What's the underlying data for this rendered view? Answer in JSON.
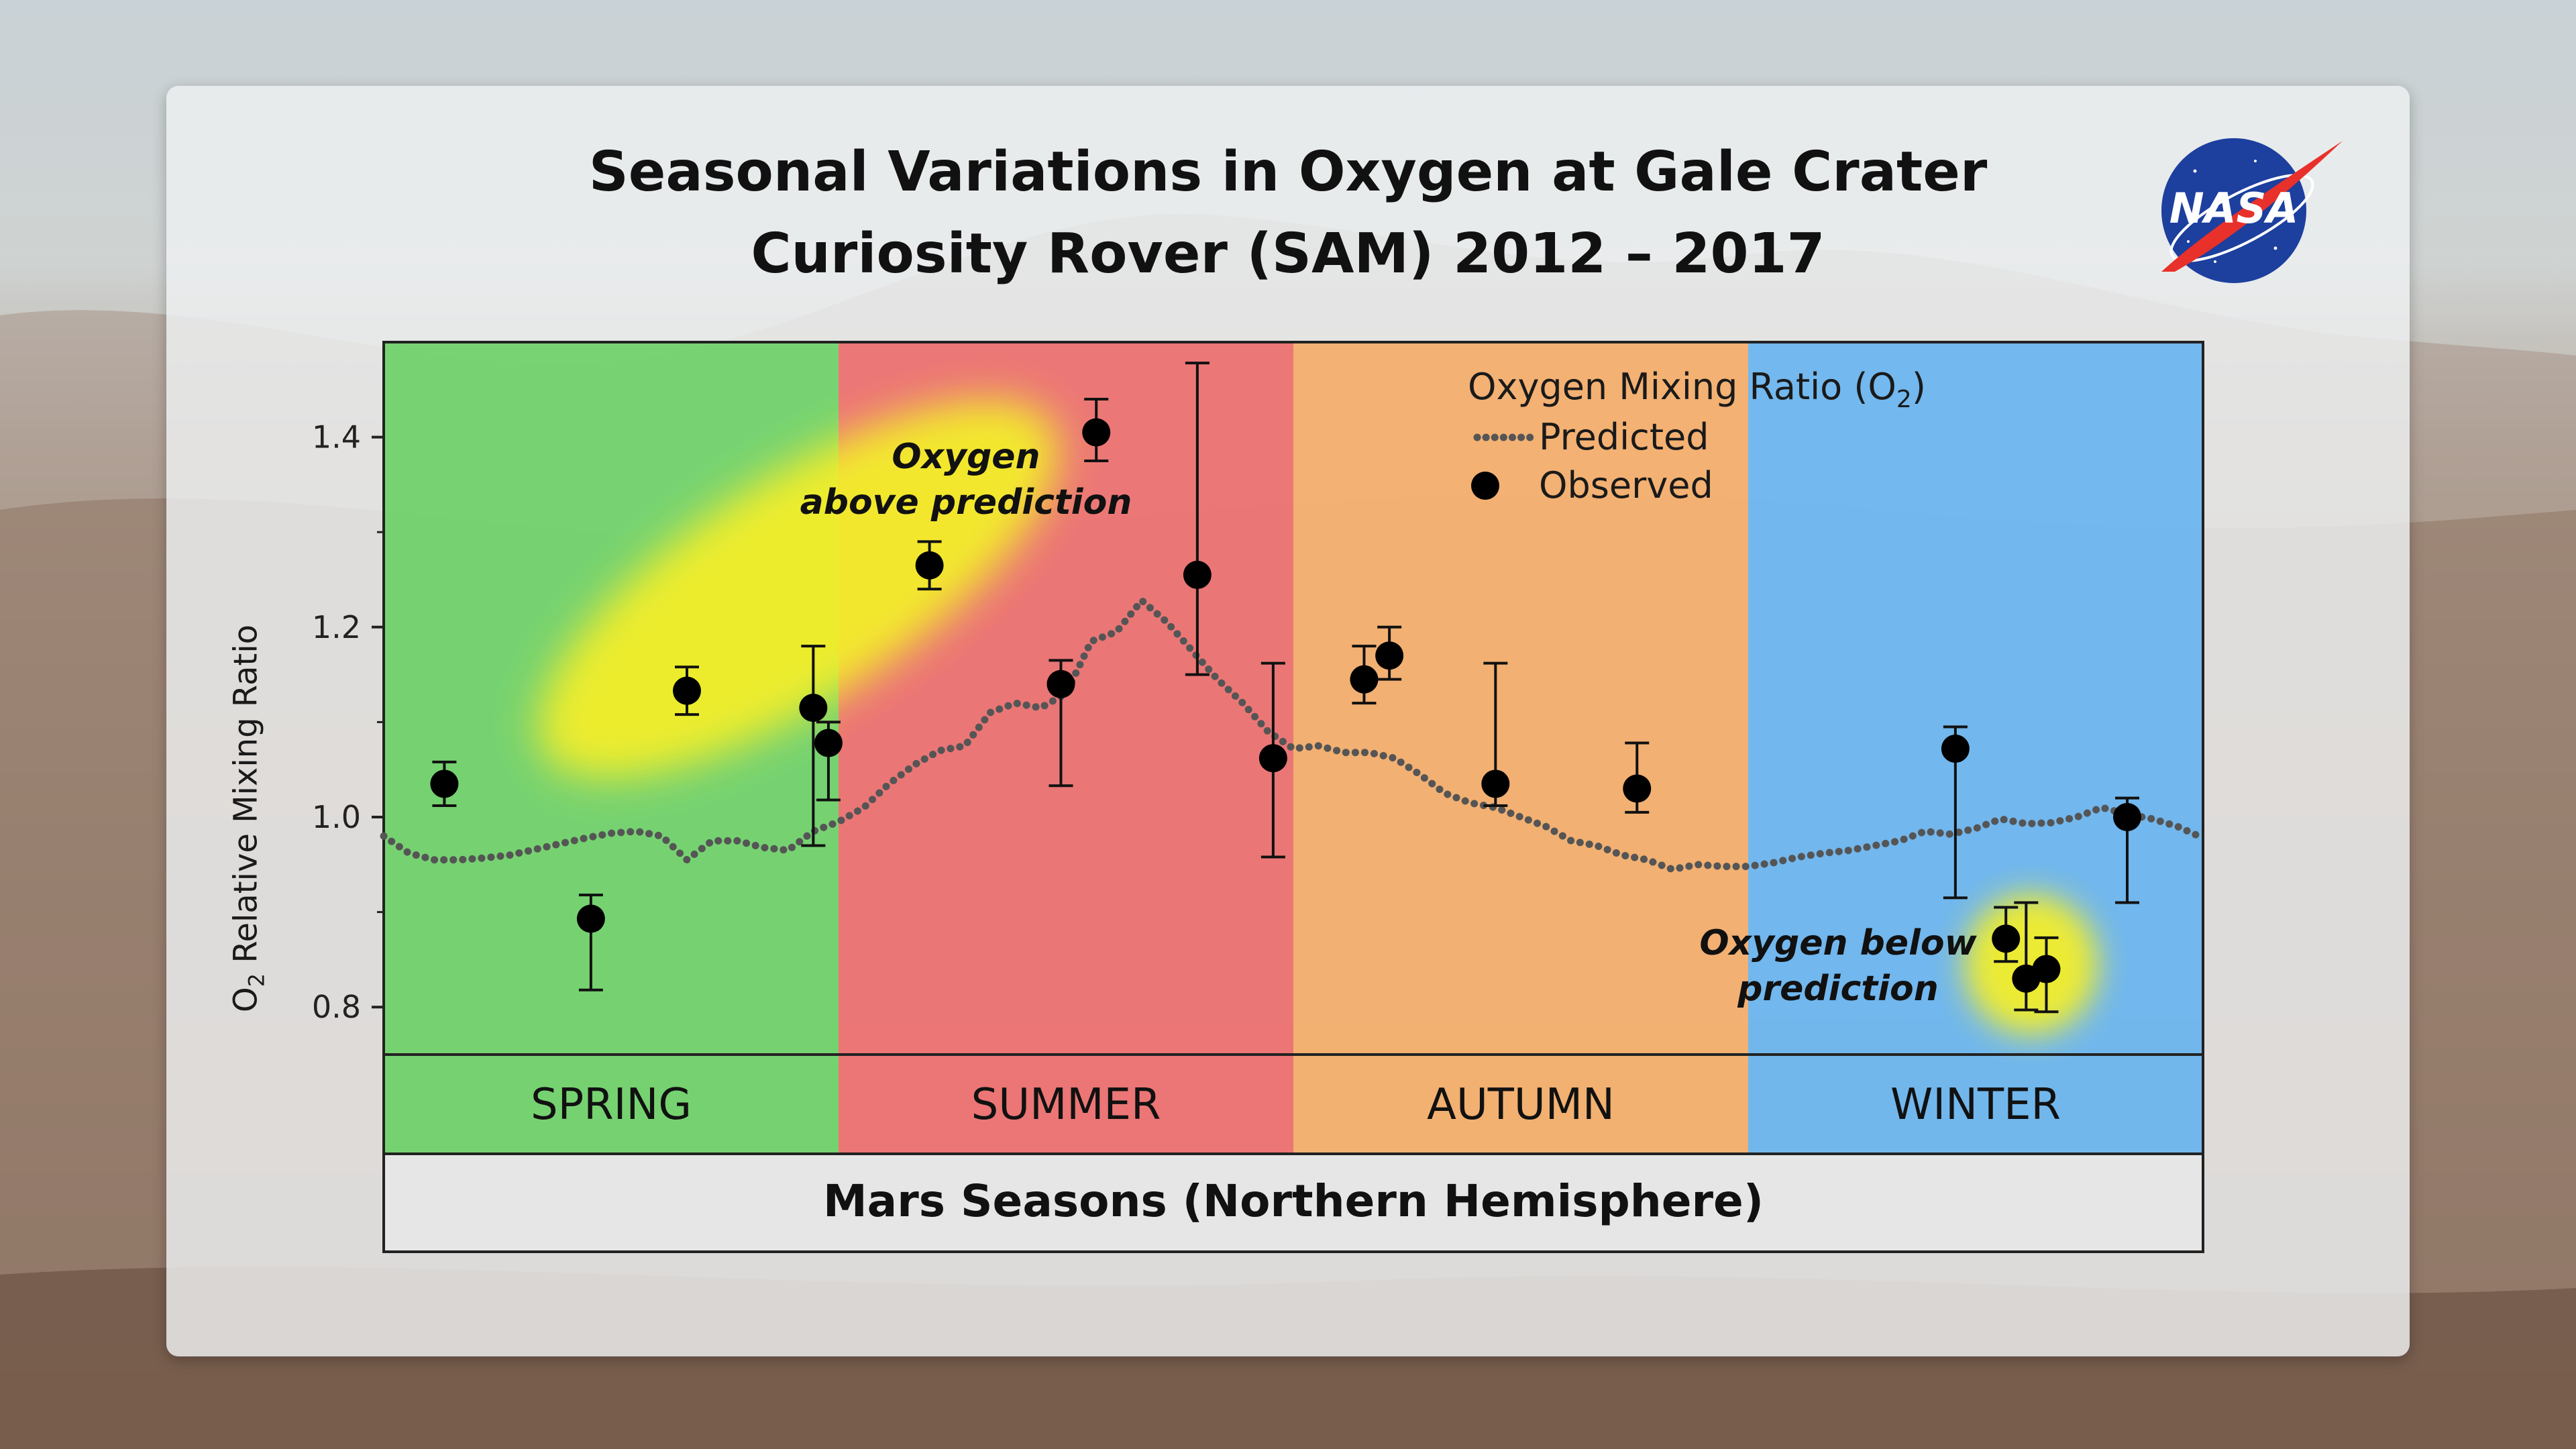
{
  "title_line1": "Seasonal Variations in Oxygen at Gale Crater",
  "title_line2": "Curiosity Rover (SAM) 2012 – 2017",
  "logo_text": "NASA",
  "colors": {
    "spring": "#5fcf59",
    "summer": "#ee5f5f",
    "autumn": "#f6a65a",
    "winter": "#5aaef0",
    "highlight": "#f3ee2a",
    "predicted": "#555555",
    "observed": "#000000"
  },
  "chart_data": {
    "type": "scatter",
    "ylabel_main": "O",
    "ylabel_sub": "2",
    "ylabel_rest": " Relative Mixing Ratio",
    "xlabel": "Mars Seasons (Northern Hemisphere)",
    "ylim": [
      0.75,
      1.5
    ],
    "yticks": [
      "0.8",
      "1.0",
      "1.2",
      "1.4"
    ],
    "xlim": [
      0,
      360
    ],
    "seasons": [
      "SPRING",
      "SUMMER",
      "AUTUMN",
      "WINTER"
    ],
    "legend": {
      "title": "Oxygen Mixing Ratio (O",
      "title_sub": "2",
      "title_end": ")",
      "predicted": "Predicted",
      "observed": "Observed"
    },
    "annotations": {
      "above_line1": "Oxygen",
      "above_line2": "above prediction",
      "below_line1": "Oxygen below",
      "below_line2": "prediction"
    },
    "predicted": {
      "x": [
        0,
        5,
        10,
        15,
        20,
        25,
        30,
        35,
        40,
        45,
        50,
        55,
        60,
        65,
        70,
        75,
        80,
        85,
        90,
        95,
        100,
        105,
        110,
        115,
        120,
        125,
        130,
        135,
        140,
        145,
        150,
        155,
        160,
        165,
        170,
        175,
        180,
        185,
        190,
        195,
        200,
        205,
        210,
        215,
        220,
        225,
        230,
        235,
        240,
        245,
        250,
        255,
        260,
        265,
        270,
        275,
        280,
        285,
        290,
        295,
        300,
        305,
        310,
        315,
        320,
        325,
        330,
        335,
        340,
        345,
        350,
        355,
        360
      ],
      "y": [
        0.98,
        0.962,
        0.955,
        0.955,
        0.957,
        0.96,
        0.966,
        0.972,
        0.978,
        0.983,
        0.985,
        0.98,
        0.955,
        0.975,
        0.975,
        0.968,
        0.965,
        0.985,
        0.995,
        1.01,
        1.035,
        1.055,
        1.07,
        1.075,
        1.11,
        1.12,
        1.115,
        1.13,
        1.185,
        1.195,
        1.228,
        1.205,
        1.175,
        1.145,
        1.12,
        1.09,
        1.072,
        1.075,
        1.068,
        1.068,
        1.062,
        1.045,
        1.025,
        1.015,
        1.01,
        1.0,
        0.99,
        0.975,
        0.97,
        0.96,
        0.955,
        0.945,
        0.95,
        0.948,
        0.948,
        0.952,
        0.958,
        0.962,
        0.965,
        0.97,
        0.975,
        0.985,
        0.982,
        0.988,
        0.998,
        0.993,
        0.994,
        1.0,
        1.01,
        1.003,
        0.998,
        0.99,
        0.978
      ]
    },
    "observed": [
      {
        "x": 12,
        "y": 1.035,
        "lo": 1.012,
        "hi": 1.058
      },
      {
        "x": 41,
        "y": 0.893,
        "lo": 0.818,
        "hi": 0.918
      },
      {
        "x": 60,
        "y": 1.133,
        "lo": 1.108,
        "hi": 1.158
      },
      {
        "x": 85,
        "y": 1.115,
        "lo": 0.97,
        "hi": 1.18
      },
      {
        "x": 88,
        "y": 1.078,
        "lo": 1.018,
        "hi": 1.1
      },
      {
        "x": 108,
        "y": 1.265,
        "lo": 1.24,
        "hi": 1.29
      },
      {
        "x": 134,
        "y": 1.14,
        "lo": 1.033,
        "hi": 1.165
      },
      {
        "x": 141,
        "y": 1.405,
        "lo": 1.375,
        "hi": 1.44
      },
      {
        "x": 161,
        "y": 1.255,
        "lo": 1.15,
        "hi": 1.478
      },
      {
        "x": 176,
        "y": 1.062,
        "lo": 0.958,
        "hi": 1.162
      },
      {
        "x": 194,
        "y": 1.145,
        "lo": 1.12,
        "hi": 1.18
      },
      {
        "x": 199,
        "y": 1.17,
        "lo": 1.145,
        "hi": 1.2
      },
      {
        "x": 220,
        "y": 1.035,
        "lo": 1.012,
        "hi": 1.162
      },
      {
        "x": 248,
        "y": 1.03,
        "lo": 1.005,
        "hi": 1.078
      },
      {
        "x": 311,
        "y": 1.072,
        "lo": 0.915,
        "hi": 1.095
      },
      {
        "x": 321,
        "y": 0.872,
        "lo": 0.848,
        "hi": 0.905
      },
      {
        "x": 325,
        "y": 0.83,
        "lo": 0.797,
        "hi": 0.91
      },
      {
        "x": 329,
        "y": 0.84,
        "lo": 0.795,
        "hi": 0.873
      },
      {
        "x": 345,
        "y": 1.0,
        "lo": 0.91,
        "hi": 1.02
      }
    ]
  }
}
